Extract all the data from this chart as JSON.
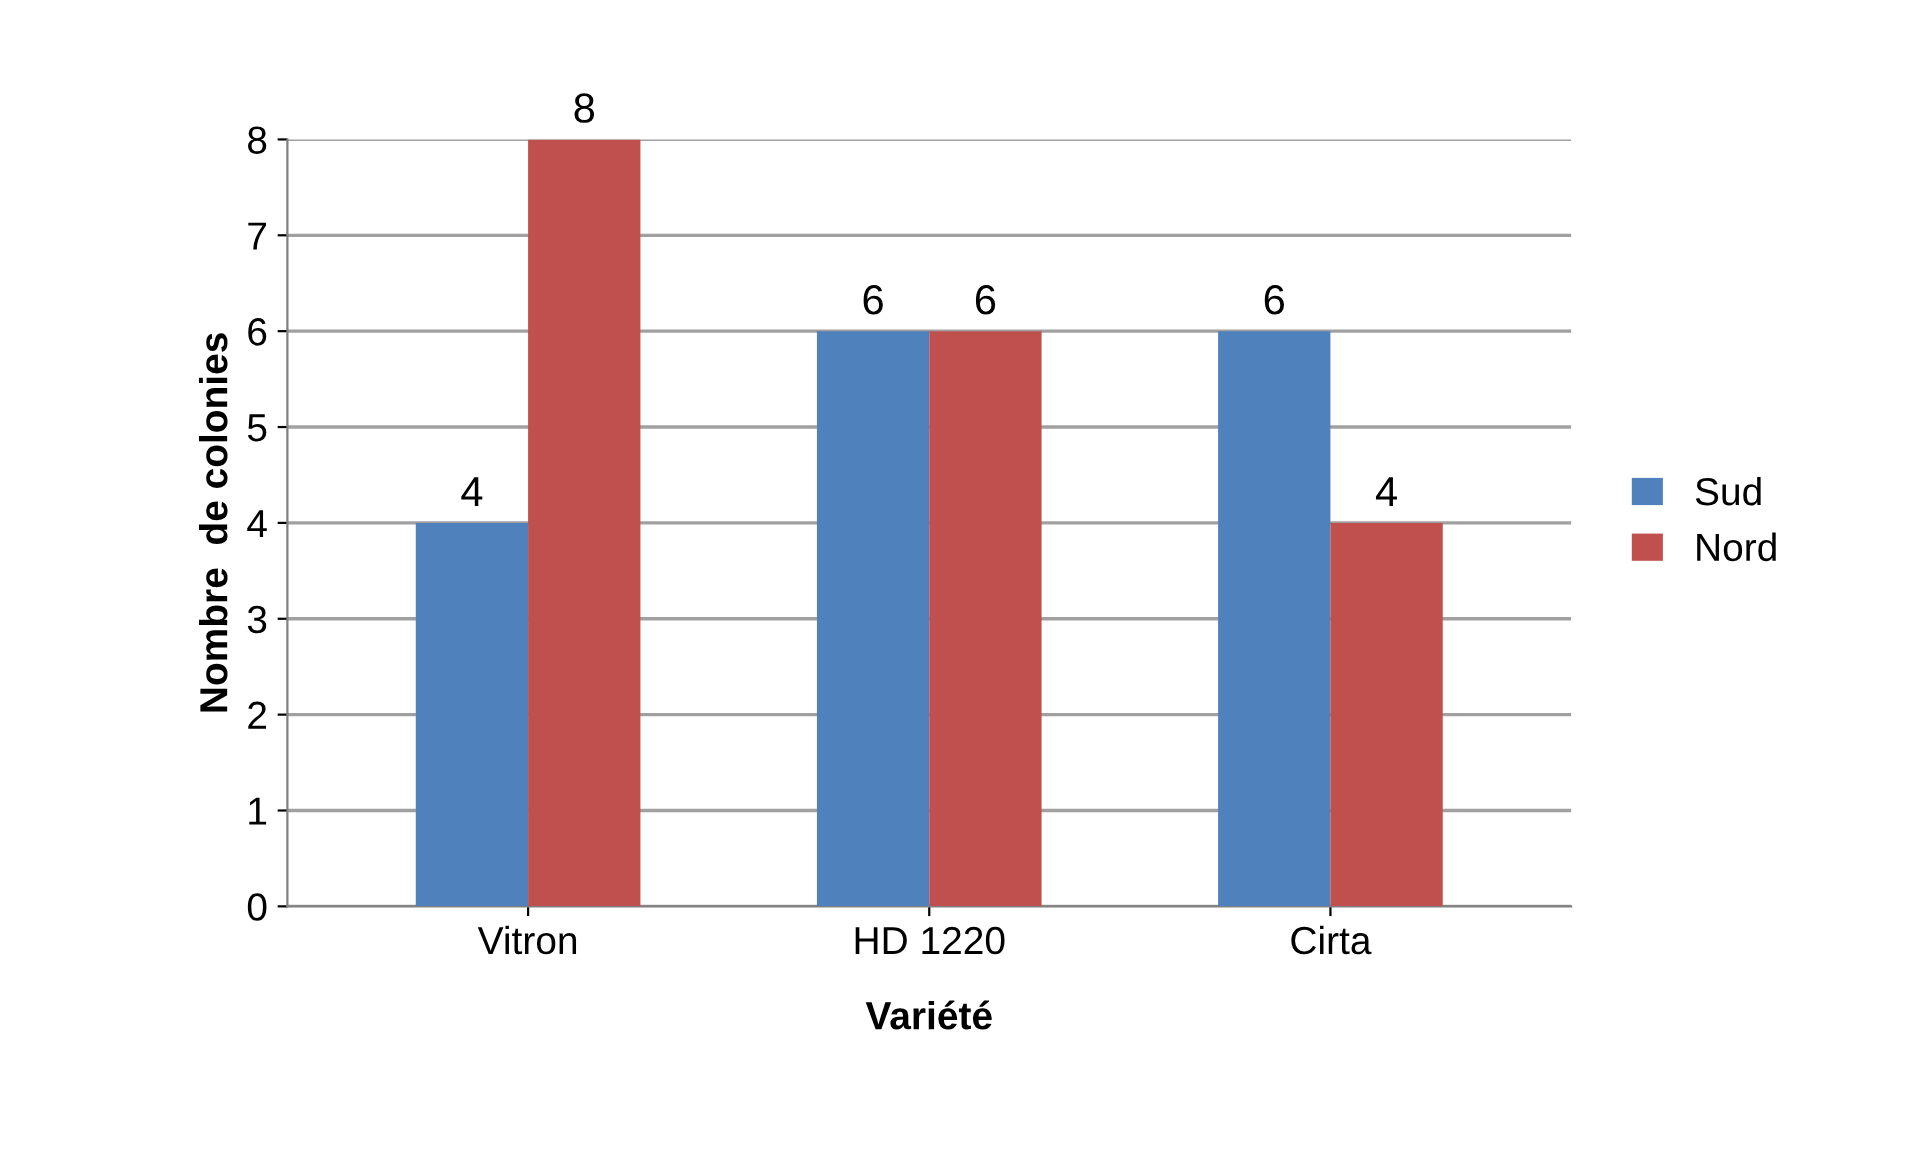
{
  "chart_data": {
    "type": "bar",
    "xlabel": "Variété",
    "ylabel": "Nombre  de colonies",
    "categories": [
      "Vitron",
      "HD 1220",
      "Cirta"
    ],
    "series": [
      {
        "name": "Sud",
        "color": "#4f81bd",
        "values": [
          4,
          6,
          6
        ]
      },
      {
        "name": "Nord",
        "color": "#c0504d",
        "values": [
          8,
          6,
          4
        ]
      }
    ],
    "ylim": [
      0,
      8
    ],
    "yticks": [
      0,
      1,
      2,
      3,
      4,
      5,
      6,
      7,
      8
    ],
    "grid": "y",
    "legend": "right",
    "data_labels": true
  }
}
